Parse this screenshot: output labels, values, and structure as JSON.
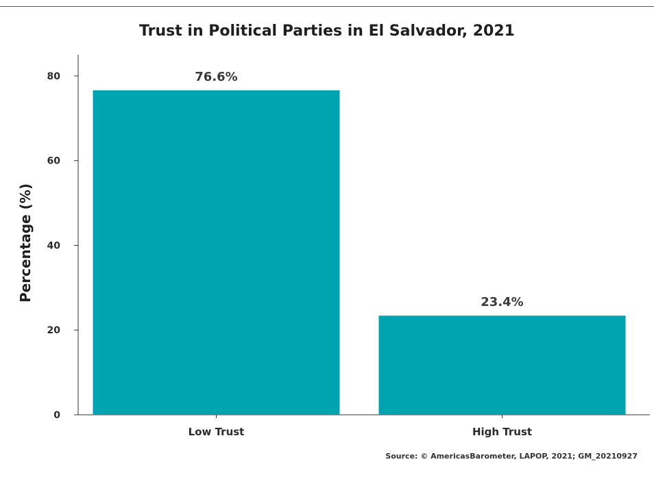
{
  "chart_data": {
    "type": "bar",
    "title": "Trust in Political Parties in El Salvador, 2021",
    "xlabel": "",
    "ylabel": "Percentage (%)",
    "ylim": [
      0,
      85
    ],
    "yticks": [
      0,
      20,
      40,
      60,
      80
    ],
    "categories": [
      "Low Trust",
      "High Trust"
    ],
    "values": [
      76.6,
      23.4
    ],
    "data_labels": [
      "76.6%",
      "23.4%"
    ],
    "bar_color": "#00A3B0",
    "grid": false,
    "legend": "none"
  },
  "source": "Source: © AmericasBarometer, LAPOP, 2021; GM_20210927"
}
